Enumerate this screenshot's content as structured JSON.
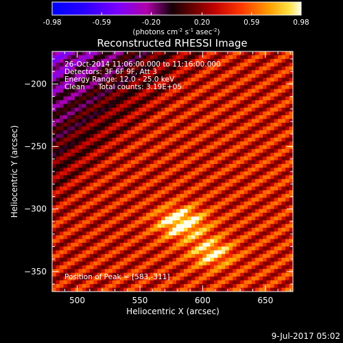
{
  "chart_data": {
    "type": "heatmap",
    "title": "Reconstructed RHESSI Image",
    "xlabel": "Heliocentric X (arcsec)",
    "ylabel": "Heliocentric Y (arcsec)",
    "xlim": [
      480,
      672
    ],
    "ylim": [
      -366,
      -174
    ],
    "x_ticks": [
      500,
      550,
      600,
      650
    ],
    "y_ticks": [
      -350,
      -300,
      -250,
      -200
    ],
    "colorbar": {
      "ticks": [
        "-0.98",
        "-0.59",
        "-0.20",
        "0.20",
        "0.59",
        "0.98"
      ],
      "min": -0.98,
      "max": 0.98,
      "label_text": "(photons cm",
      "label_exp1": "-2",
      "label_mid": " s",
      "label_exp2": "-1",
      "label_mid2": " asec",
      "label_exp3": "-2",
      "label_end": ")"
    },
    "annotations": {
      "time": "26-Oct-2014 11:06:00.000 to 11:16:00.000",
      "detectors": "Detectors: 3F 6F 9F, Att 3",
      "energy": "Energy Range: 12.0 - 25.0 keV",
      "method": "Clean",
      "counts": "Total counts: 3.19E+05",
      "peak": "Position of Peak = [583,-311]"
    },
    "peak": {
      "x": 583,
      "y": -311
    },
    "secondary_source": {
      "x": 607,
      "y": -335
    },
    "stripe_direction": "diagonal, rising to the upper-right",
    "colormap": "black-purple-red-orange-yellow-white"
  },
  "footer": {
    "date": "9-Jul-2017 05:02"
  }
}
